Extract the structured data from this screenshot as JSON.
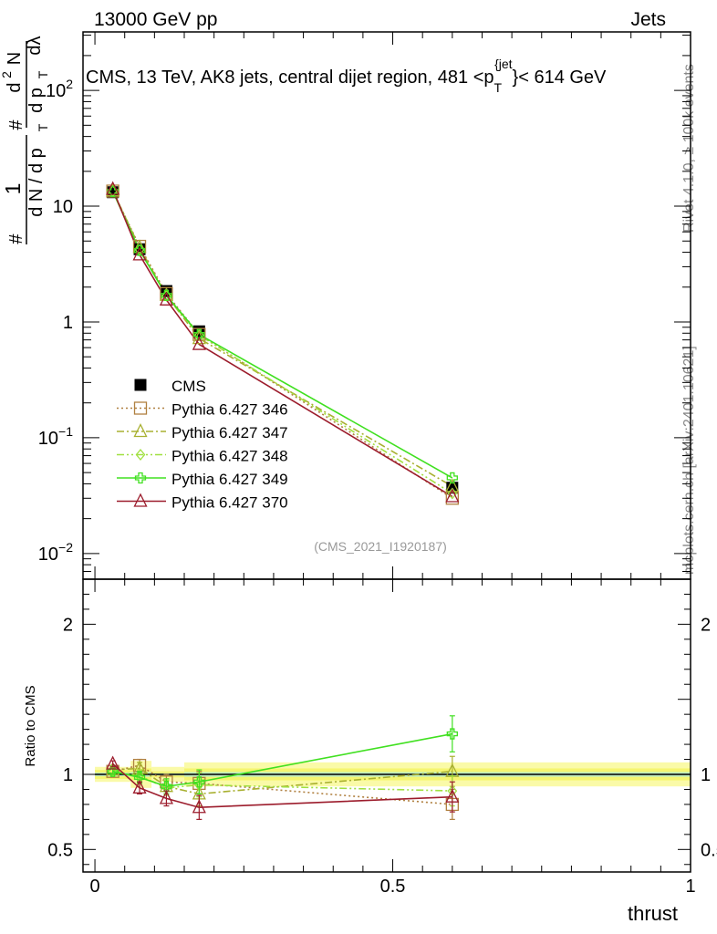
{
  "header": {
    "left": "13000 GeV pp",
    "right": "Jets"
  },
  "side_labels": {
    "rivet": "Rivet 4.1.0, ≥ 100k events",
    "mcplots": "mcplots.cern.ch [arXiv:2401.10621]"
  },
  "chart_data": [
    {
      "type": "line",
      "panel": "main",
      "title": "CMS, 13 TeV, AK8 jets, central dijet region, 481 <p_T^{jet}< 614 GeV",
      "title_parts": {
        "main": "CMS, 13 TeV, AK8 jets, central dijet region, 481 <p",
        "sub": "T",
        "sup": "{jet",
        "tail": "}< 614 GeV"
      },
      "ylabel": "1/N dN/dp_T d²N/dp_T dλ",
      "ylabel_parts": {
        "hash": "#",
        "one": "1",
        "dN": "d N / d p",
        "T": "T",
        "d2N": "d",
        "two": "2",
        "N": "N",
        "dp": "d p",
        "dlambda": "dλ"
      },
      "yscale": "log",
      "ylim": [
        0.006,
        320
      ],
      "xlim": [
        -0.02,
        1.0
      ],
      "y_ticks": [
        {
          "value": 0.01,
          "base": "10",
          "exp": "−2"
        },
        {
          "value": 0.1,
          "base": "10",
          "exp": "−1"
        },
        {
          "value": 1,
          "base": "1",
          "exp": ""
        },
        {
          "value": 10,
          "base": "10",
          "exp": ""
        },
        {
          "value": 100,
          "base": "10",
          "exp": "2"
        }
      ],
      "watermark": "(CMS_2021_I1920187)",
      "x": [
        0.03,
        0.075,
        0.12,
        0.175,
        0.6
      ],
      "series": [
        {
          "name": "CMS",
          "color": "#000000",
          "marker": "square",
          "line": "none",
          "values": [
            13.2,
            4.25,
            1.85,
            0.83,
            0.037
          ]
        },
        {
          "name": "Pythia 6.427 346",
          "color": "#b08040",
          "marker": "open-square",
          "line": "dotted",
          "values": [
            13.5,
            4.5,
            1.76,
            0.78,
            0.03
          ]
        },
        {
          "name": "Pythia 6.427 347",
          "color": "#a8b030",
          "marker": "open-triangle",
          "line": "dashdot",
          "values": [
            13.6,
            4.4,
            1.7,
            0.72,
            0.038
          ]
        },
        {
          "name": "Pythia 6.427 348",
          "color": "#a0e040",
          "marker": "open-diamond",
          "line": "dashdotdot",
          "values": [
            13.5,
            4.2,
            1.68,
            0.77,
            0.033
          ]
        },
        {
          "name": "Pythia 6.427 349",
          "color": "#40e020",
          "marker": "open-cross",
          "line": "solid",
          "values": [
            13.4,
            4.15,
            1.7,
            0.78,
            0.045
          ]
        },
        {
          "name": "Pythia 6.427 370",
          "color": "#9c1c2c",
          "marker": "open-triangle",
          "line": "solid",
          "values": [
            14.0,
            3.8,
            1.55,
            0.64,
            0.031
          ]
        }
      ]
    },
    {
      "type": "line",
      "panel": "ratio",
      "ylabel": "Ratio to CMS",
      "xlabel": "thrust",
      "ylim": [
        0.35,
        2.3
      ],
      "xlim": [
        -0.02,
        1.0
      ],
      "y_ticks": [
        0.5,
        1,
        2
      ],
      "y_tick_labels": [
        "0.5",
        "1",
        "2"
      ],
      "x_ticks": [
        0,
        0.5,
        1
      ],
      "x_tick_labels": [
        "0",
        "0.5",
        "1"
      ],
      "x": [
        0.03,
        0.075,
        0.12,
        0.175,
        0.6
      ],
      "series": [
        {
          "name": "Pythia 6.427 346",
          "values": [
            1.02,
            1.06,
            0.95,
            0.94,
            0.8
          ],
          "errors": [
            0.02,
            0.04,
            0.05,
            0.08,
            0.1
          ]
        },
        {
          "name": "Pythia 6.427 347",
          "values": [
            1.03,
            1.04,
            0.92,
            0.87,
            1.02
          ],
          "errors": [
            0.02,
            0.04,
            0.05,
            0.08,
            0.1
          ]
        },
        {
          "name": "Pythia 6.427 348",
          "values": [
            1.02,
            0.99,
            0.91,
            0.93,
            0.89
          ],
          "errors": [
            0.02,
            0.04,
            0.05,
            0.08,
            0.1
          ]
        },
        {
          "name": "Pythia 6.427 349",
          "values": [
            1.02,
            0.98,
            0.92,
            0.95,
            1.27
          ],
          "errors": [
            0.02,
            0.04,
            0.05,
            0.08,
            0.12
          ]
        },
        {
          "name": "Pythia 6.427 370",
          "values": [
            1.07,
            0.91,
            0.84,
            0.78,
            0.85
          ],
          "errors": [
            0.02,
            0.04,
            0.05,
            0.08,
            0.1
          ]
        }
      ],
      "uncertainty_band": {
        "x_edges": [
          0.0,
          0.06,
          0.095,
          0.15,
          1.0
        ],
        "inner": [
          0.03,
          0.04,
          0.02,
          0.04
        ],
        "outer": [
          0.05,
          0.09,
          0.05,
          0.08
        ],
        "inner_color": "#f5f570",
        "outer_color": "#fafaa8",
        "center_color": "#a8e8e0"
      }
    }
  ]
}
